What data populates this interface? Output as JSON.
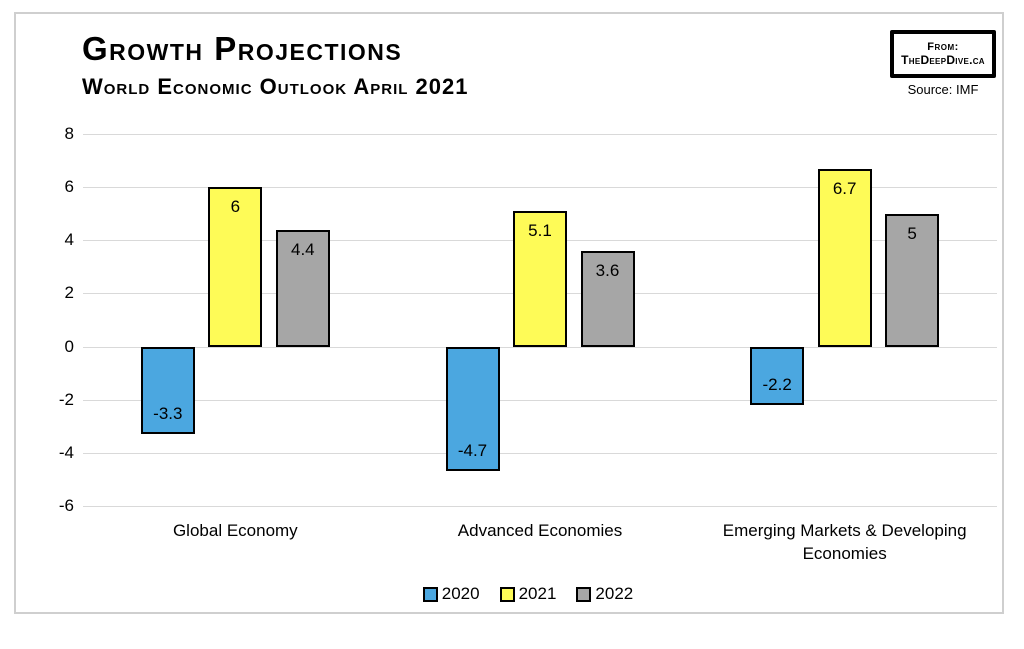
{
  "header": {
    "title": "Growth Projections",
    "subtitle": "World Economic Outlook April 2021",
    "badge_line1": "From:",
    "badge_line2": "TheDeepDive.ca",
    "source": "Source: IMF"
  },
  "chart_data": {
    "type": "bar",
    "title": "Growth Projections",
    "subtitle": "World Economic Outlook April 2021",
    "categories": [
      "Global Economy",
      "Advanced Economies",
      "Emerging Markets & Developing Economies"
    ],
    "series": [
      {
        "name": "2020",
        "color": "#4BA7E0",
        "values": [
          -3.3,
          -4.7,
          -2.2
        ]
      },
      {
        "name": "2021",
        "color": "#FEFB57",
        "values": [
          6,
          5.1,
          6.7
        ]
      },
      {
        "name": "2022",
        "color": "#A6A6A6",
        "values": [
          4.4,
          3.6,
          5
        ]
      }
    ],
    "value_labels": [
      [
        "-3.3",
        "-4.7",
        "-2.2"
      ],
      [
        "6",
        "5.1",
        "6.7"
      ],
      [
        "4.4",
        "3.6",
        "5"
      ]
    ],
    "ylim": [
      -6,
      8
    ],
    "ytick_step": 2,
    "yticks": [
      "8",
      "6",
      "4",
      "2",
      "0",
      "-2",
      "-4",
      "-6"
    ],
    "grid": "horizontal",
    "gridline_color": "#D9D9D9",
    "legend_position": "bottom",
    "legend": [
      "2020",
      "2021",
      "2022"
    ]
  }
}
